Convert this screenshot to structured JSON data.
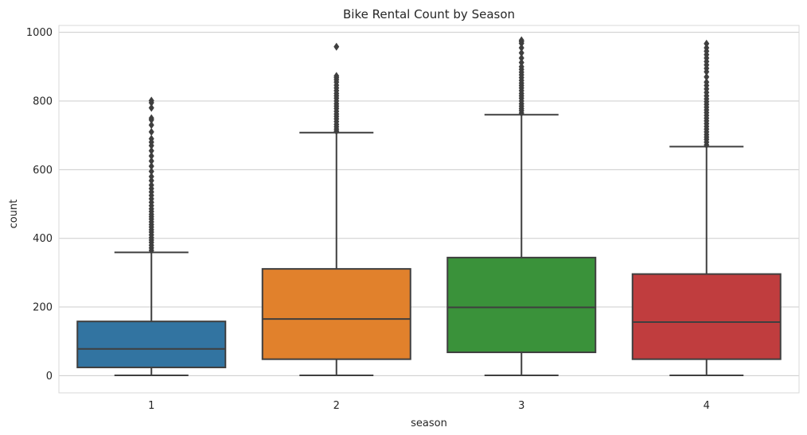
{
  "chart_data": {
    "type": "box",
    "title": "Bike Rental Count by Season",
    "xlabel": "season",
    "ylabel": "count",
    "categories": [
      "1",
      "2",
      "3",
      "4"
    ],
    "ylim": [
      -50,
      1020
    ],
    "yticks": [
      0,
      200,
      400,
      600,
      800,
      1000
    ],
    "grid": true,
    "boxes": [
      {
        "category": "1",
        "color": "#3274a1",
        "min": 1,
        "q1": 24,
        "median": 78,
        "q3": 158,
        "whisker_high": 359,
        "outliers": [
          365,
          372,
          380,
          388,
          395,
          402,
          410,
          418,
          425,
          433,
          440,
          448,
          456,
          463,
          470,
          478,
          486,
          495,
          505,
          515,
          525,
          535,
          545,
          555,
          568,
          580,
          595,
          610,
          625,
          640,
          655,
          670,
          680,
          690,
          710,
          730,
          745,
          750,
          780,
          795,
          801
        ]
      },
      {
        "category": "2",
        "color": "#e1812c",
        "min": 1,
        "q1": 48,
        "median": 165,
        "q3": 311,
        "whisker_high": 708,
        "outliers": [
          712,
          718,
          725,
          732,
          740,
          748,
          755,
          762,
          770,
          778,
          785,
          792,
          800,
          808,
          815,
          822,
          830,
          838,
          846,
          855,
          862,
          868,
          873,
          958
        ]
      },
      {
        "category": "3",
        "color": "#3a923a",
        "min": 1,
        "q1": 68,
        "median": 199,
        "q3": 344,
        "whisker_high": 760,
        "outliers": [
          765,
          772,
          778,
          785,
          792,
          800,
          808,
          815,
          822,
          830,
          838,
          845,
          852,
          860,
          868,
          876,
          884,
          892,
          900,
          912,
          925,
          940,
          955,
          968,
          973,
          977
        ]
      },
      {
        "category": "4",
        "color": "#c03d3e",
        "min": 1,
        "q1": 48,
        "median": 156,
        "q3": 296,
        "whisker_high": 667,
        "outliers": [
          672,
          680,
          688,
          695,
          702,
          710,
          718,
          726,
          734,
          742,
          750,
          758,
          766,
          774,
          782,
          790,
          798,
          806,
          815,
          825,
          835,
          845,
          855,
          870,
          885,
          895,
          905,
          915,
          925,
          935,
          945,
          955,
          967
        ]
      }
    ]
  }
}
